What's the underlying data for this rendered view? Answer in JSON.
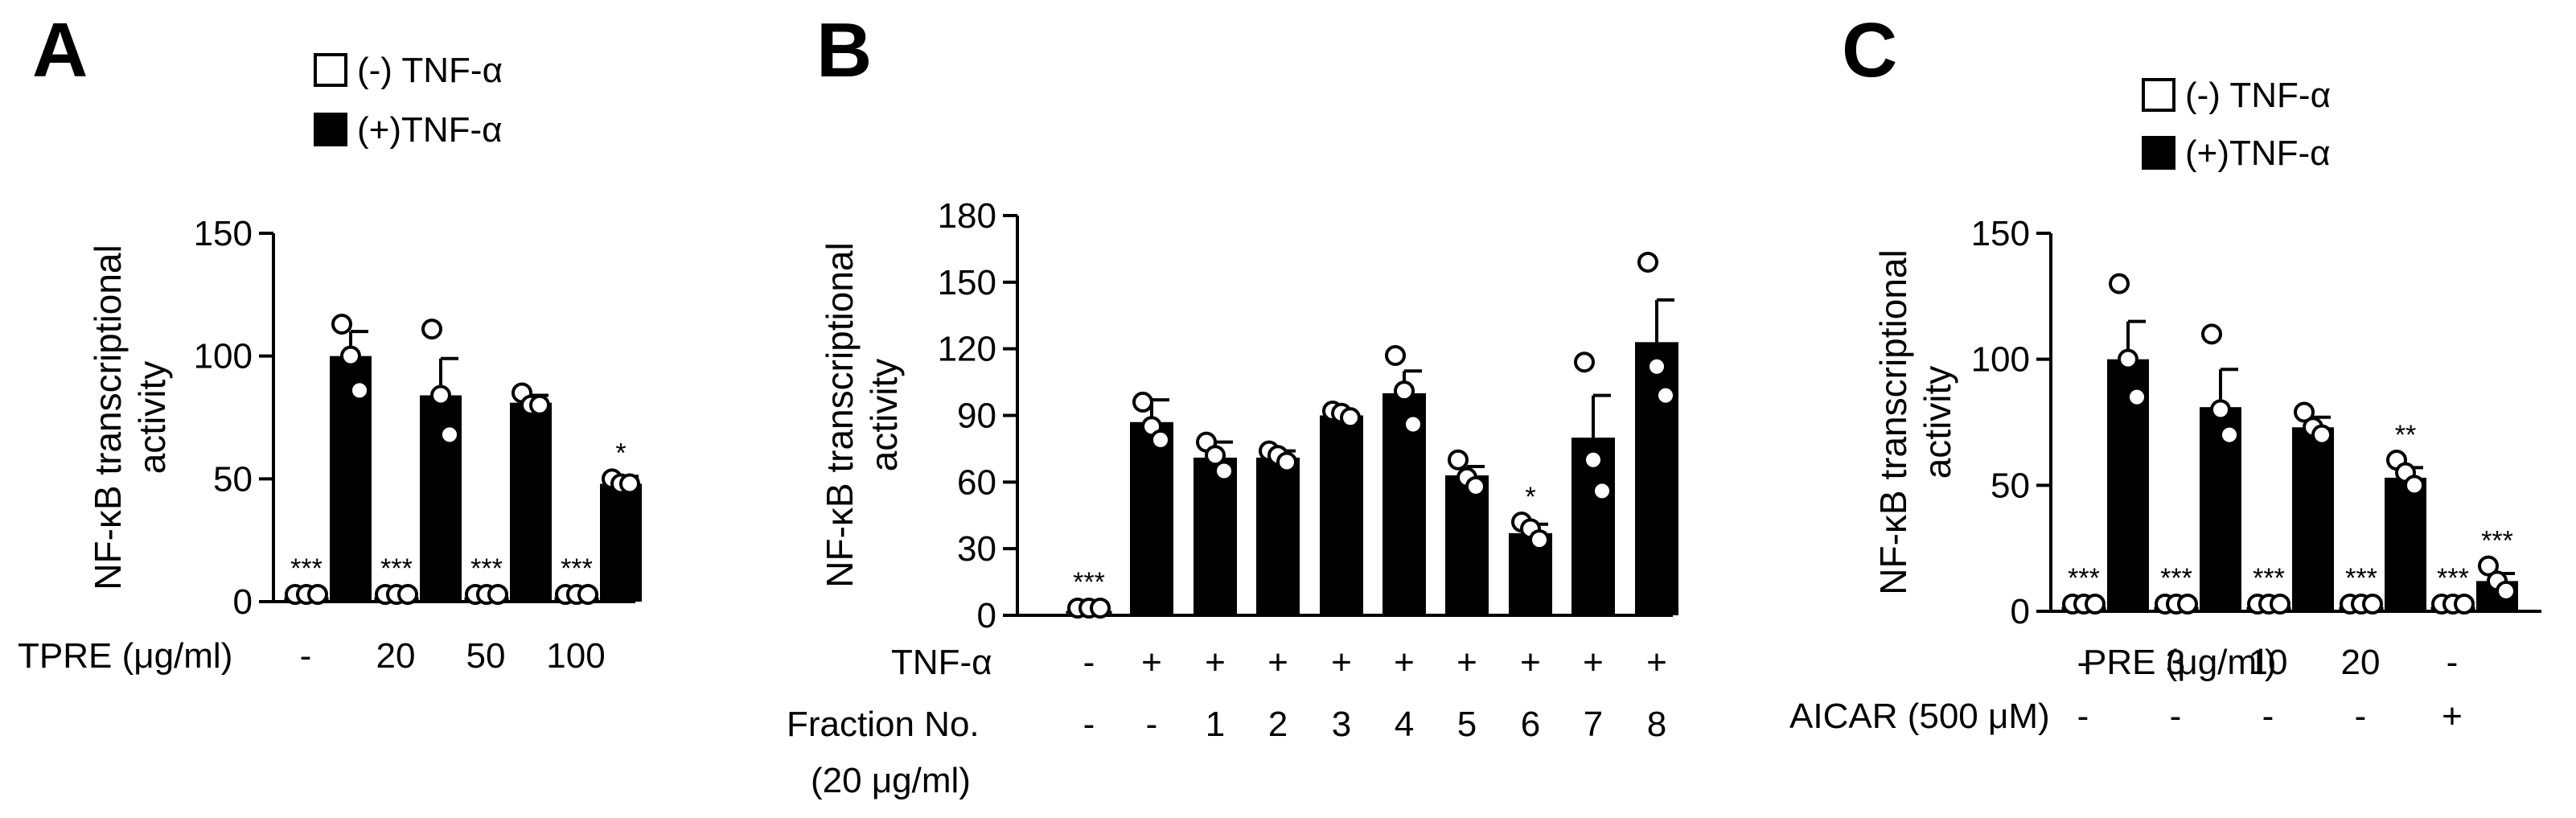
{
  "chart_data": [
    {
      "panel": "A",
      "type": "bar",
      "ylabel": [
        "NF-κB transcriptional",
        "activity"
      ],
      "ylim": [
        0,
        150
      ],
      "yticks": [
        0,
        50,
        100,
        150
      ],
      "legend": [
        {
          "label": "(-) TNF-α",
          "fill": "open"
        },
        {
          "label": "(+)TNF-α",
          "fill": "solid"
        }
      ],
      "row_labels": [
        {
          "label": "TPRE (μg/ml)",
          "values": [
            "-",
            "",
            "20",
            "",
            "50",
            "",
            "100",
            ""
          ]
        }
      ],
      "bars": [
        {
          "group": 0,
          "fill": "open",
          "value": 1,
          "error": 0,
          "points": [
            1,
            1,
            1
          ],
          "sig": "***"
        },
        {
          "group": 0,
          "fill": "solid",
          "value": 100,
          "error": 10,
          "points": [
            113,
            100,
            86
          ],
          "sig": ""
        },
        {
          "group": 1,
          "fill": "open",
          "value": 1,
          "error": 0,
          "points": [
            1,
            1,
            1
          ],
          "sig": "***"
        },
        {
          "group": 1,
          "fill": "solid",
          "value": 84,
          "error": 15,
          "points": [
            111,
            84,
            68
          ],
          "sig": ""
        },
        {
          "group": 2,
          "fill": "open",
          "value": 1,
          "error": 0,
          "points": [
            1,
            1,
            1
          ],
          "sig": "***"
        },
        {
          "group": 2,
          "fill": "solid",
          "value": 81,
          "error": 3,
          "points": [
            85,
            80,
            80
          ],
          "sig": ""
        },
        {
          "group": 3,
          "fill": "open",
          "value": 1,
          "error": 0,
          "points": [
            1,
            1,
            1
          ],
          "sig": "***"
        },
        {
          "group": 3,
          "fill": "solid",
          "value": 48,
          "error": 3,
          "points": [
            50,
            48,
            48
          ],
          "sig": "*"
        }
      ]
    },
    {
      "panel": "B",
      "type": "bar",
      "ylabel": [
        "NF-κB transcriptional",
        "activity"
      ],
      "ylim": [
        0,
        180
      ],
      "yticks": [
        0,
        30,
        60,
        90,
        120,
        150,
        180
      ],
      "legend": [],
      "row_labels": [
        {
          "label": "TNF-α",
          "values": [
            "-",
            "+",
            "+",
            "+",
            "+",
            "+",
            "+",
            "+",
            "+",
            "+"
          ]
        },
        {
          "label": "Fraction No.",
          "label2": "(20 μg/ml)",
          "values": [
            "-",
            "-",
            "1",
            "2",
            "3",
            "4",
            "5",
            "6",
            "7",
            "8"
          ]
        }
      ],
      "bars": [
        {
          "group": 0,
          "fill": "open",
          "value": 1,
          "error": 0,
          "points": [
            2,
            2,
            2
          ],
          "sig": "***"
        },
        {
          "group": 1,
          "fill": "solid",
          "value": 87,
          "error": 10,
          "points": [
            96,
            85,
            79
          ],
          "sig": ""
        },
        {
          "group": 2,
          "fill": "solid",
          "value": 71,
          "error": 7,
          "points": [
            78,
            72,
            65
          ],
          "sig": ""
        },
        {
          "group": 3,
          "fill": "solid",
          "value": 71,
          "error": 3,
          "points": [
            74,
            72,
            69
          ],
          "sig": ""
        },
        {
          "group": 4,
          "fill": "solid",
          "value": 90,
          "error": 1,
          "points": [
            92,
            91,
            89
          ],
          "sig": ""
        },
        {
          "group": 5,
          "fill": "solid",
          "value": 100,
          "error": 10,
          "points": [
            117,
            101,
            86
          ],
          "sig": ""
        },
        {
          "group": 6,
          "fill": "solid",
          "value": 63,
          "error": 4,
          "points": [
            70,
            62,
            58
          ],
          "sig": ""
        },
        {
          "group": 7,
          "fill": "solid",
          "value": 37,
          "error": 4,
          "points": [
            42,
            39,
            34
          ],
          "sig": "*"
        },
        {
          "group": 8,
          "fill": "solid",
          "value": 80,
          "error": 19,
          "points": [
            114,
            70,
            56
          ],
          "sig": ""
        },
        {
          "group": 9,
          "fill": "solid",
          "value": 123,
          "error": 19,
          "points": [
            159,
            112,
            99
          ],
          "sig": ""
        }
      ]
    },
    {
      "panel": "C",
      "type": "bar",
      "ylabel": [
        "NF-κB transcriptional",
        "activity"
      ],
      "ylim": [
        0,
        150
      ],
      "yticks": [
        0,
        50,
        100,
        150
      ],
      "legend": [
        {
          "label": "(-) TNF-α",
          "fill": "open"
        },
        {
          "label": "(+)TNF-α",
          "fill": "solid"
        }
      ],
      "row_labels": [
        {
          "label": "PRE (μg/ml)",
          "values": [
            "-",
            "",
            "3",
            "",
            "10",
            "",
            "20",
            "",
            "-",
            ""
          ]
        },
        {
          "label": "AICAR (500 μM)",
          "values": [
            "-",
            "",
            "-",
            "",
            "-",
            "",
            "-",
            "",
            "+",
            ""
          ]
        }
      ],
      "bars": [
        {
          "group": 0,
          "fill": "open",
          "value": 1,
          "error": 0,
          "points": [
            1,
            1,
            1
          ],
          "sig": "***"
        },
        {
          "group": 0,
          "fill": "solid",
          "value": 100,
          "error": 15,
          "points": [
            130,
            100,
            85
          ],
          "sig": ""
        },
        {
          "group": 1,
          "fill": "open",
          "value": 1,
          "error": 0,
          "points": [
            1,
            1,
            1
          ],
          "sig": "***"
        },
        {
          "group": 1,
          "fill": "solid",
          "value": 81,
          "error": 15,
          "points": [
            110,
            80,
            70
          ],
          "sig": ""
        },
        {
          "group": 2,
          "fill": "open",
          "value": 1,
          "error": 0,
          "points": [
            1,
            1,
            1
          ],
          "sig": "***"
        },
        {
          "group": 2,
          "fill": "solid",
          "value": 73,
          "error": 4,
          "points": [
            79,
            73,
            70
          ],
          "sig": ""
        },
        {
          "group": 3,
          "fill": "open",
          "value": 1,
          "error": 0,
          "points": [
            1,
            1,
            1
          ],
          "sig": "***"
        },
        {
          "group": 3,
          "fill": "solid",
          "value": 53,
          "error": 4,
          "points": [
            60,
            55,
            50
          ],
          "sig": "**"
        },
        {
          "group": 4,
          "fill": "open",
          "value": 1,
          "error": 0,
          "points": [
            1,
            1,
            1
          ],
          "sig": "***"
        },
        {
          "group": 4,
          "fill": "solid",
          "value": 12,
          "error": 3,
          "points": [
            18,
            12,
            8
          ],
          "sig": "***"
        }
      ]
    }
  ]
}
